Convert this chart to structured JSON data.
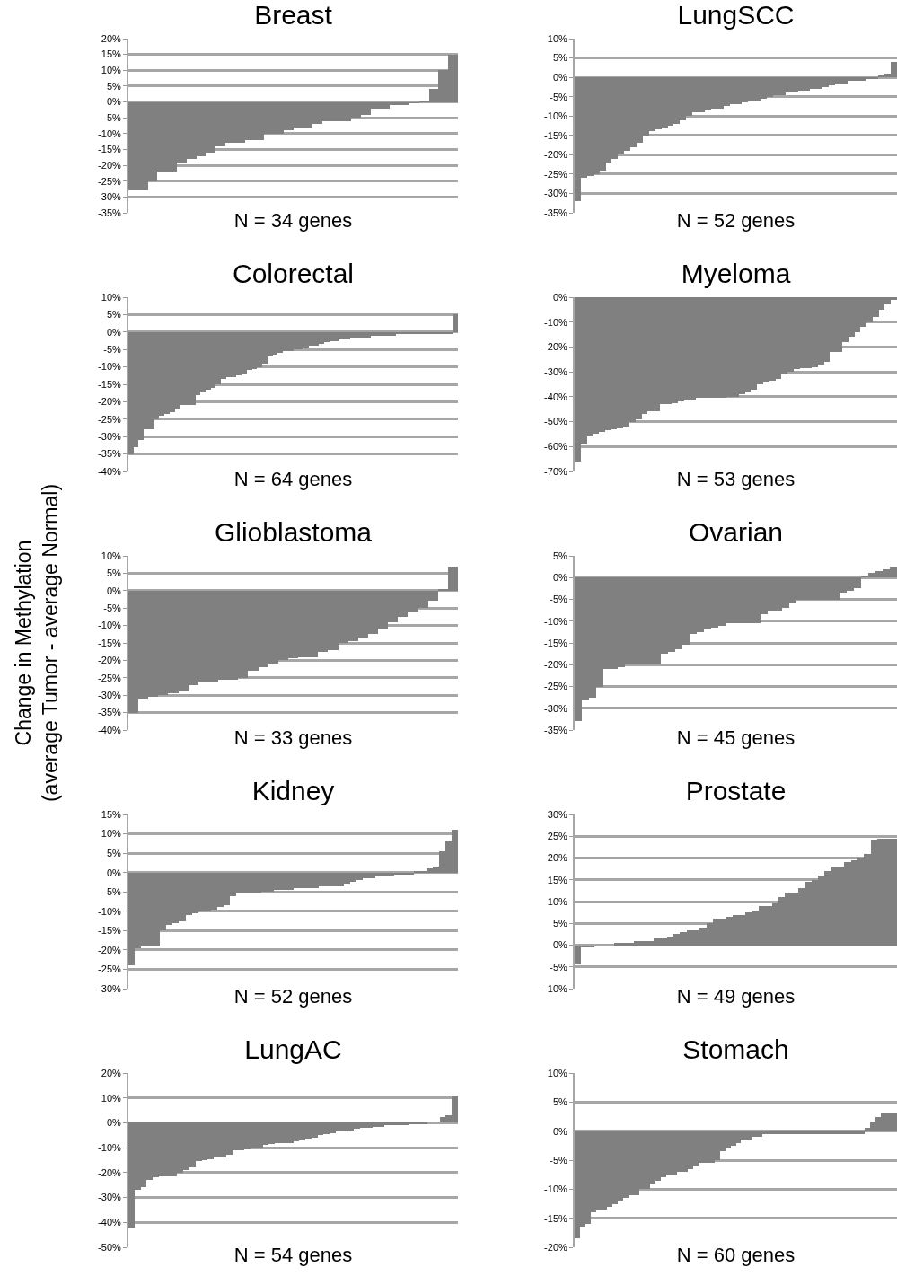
{
  "chart_data": [
    {
      "type": "bar",
      "title": "Breast",
      "xlabel": "N = 34 genes",
      "color": "#808080",
      "grid": "y",
      "tick_labels": "y",
      "categories": [
        null,
        null,
        null,
        null,
        null,
        null,
        null,
        null,
        null,
        null,
        null,
        null,
        null,
        null,
        null,
        null,
        null,
        null,
        null,
        null,
        null,
        null,
        null,
        null,
        null,
        null,
        null,
        null,
        null,
        null,
        null,
        null,
        null,
        null
      ],
      "values": [
        -28,
        -28,
        -25,
        -22,
        -22,
        -19,
        -18,
        -17,
        -16,
        -14,
        -13,
        -13,
        -12,
        -12,
        -10,
        -10,
        -9,
        -8,
        -8,
        -7,
        -6,
        -6,
        -6,
        -5,
        -4,
        -2,
        -2,
        -1,
        -1,
        -0.5,
        0.5,
        4,
        10,
        15
      ],
      "ylim": [
        -35,
        20
      ],
      "yticks": [
        {
          "value": -35,
          "label": "-35%"
        },
        {
          "value": -30,
          "label": "-30%"
        },
        {
          "value": -25,
          "label": "-25%"
        },
        {
          "value": -20,
          "label": "-20%"
        },
        {
          "value": -15,
          "label": "-15%"
        },
        {
          "value": -10,
          "label": "-10%"
        },
        {
          "value": -5,
          "label": "-5%"
        },
        {
          "value": 0,
          "label": "0%"
        },
        {
          "value": 5,
          "label": "5%"
        },
        {
          "value": 10,
          "label": "10%"
        },
        {
          "value": 15,
          "label": "15%"
        },
        {
          "value": 20,
          "label": "20%"
        }
      ]
    },
    {
      "type": "bar",
      "title": "LungSCC",
      "xlabel": "N = 52 genes",
      "color": "#808080",
      "grid": "y",
      "tick_labels": "y",
      "categories": [
        null,
        null,
        null,
        null,
        null,
        null,
        null,
        null,
        null,
        null,
        null,
        null,
        null,
        null,
        null,
        null,
        null,
        null,
        null,
        null,
        null,
        null,
        null,
        null,
        null,
        null,
        null,
        null,
        null,
        null,
        null,
        null,
        null,
        null,
        null,
        null,
        null,
        null,
        null,
        null,
        null,
        null,
        null,
        null,
        null,
        null,
        null,
        null,
        null,
        null,
        null,
        null
      ],
      "values": [
        -32,
        -26,
        -25.5,
        -25,
        -24,
        -22,
        -21,
        -20,
        -19,
        -18,
        -17,
        -15,
        -14,
        -13.5,
        -13,
        -12.5,
        -12,
        -11,
        -10,
        -9,
        -9,
        -8.5,
        -8,
        -8,
        -7.5,
        -7,
        -7,
        -6.5,
        -6,
        -6,
        -5.5,
        -5,
        -4.5,
        -4.5,
        -4,
        -4,
        -3.5,
        -3.5,
        -3,
        -3,
        -2.5,
        -2,
        -1.5,
        -1.5,
        -1,
        -1,
        -1,
        -0.5,
        -0.5,
        0.5,
        1,
        4
      ],
      "ylim": [
        -35,
        10
      ],
      "yticks": [
        {
          "value": -35,
          "label": "-35%"
        },
        {
          "value": -30,
          "label": "-30%"
        },
        {
          "value": -25,
          "label": "-25%"
        },
        {
          "value": -20,
          "label": "-20%"
        },
        {
          "value": -15,
          "label": "-15%"
        },
        {
          "value": -10,
          "label": "-10%"
        },
        {
          "value": -5,
          "label": "-5%"
        },
        {
          "value": 0,
          "label": "0%"
        },
        {
          "value": 5,
          "label": "5%"
        },
        {
          "value": 10,
          "label": "10%"
        }
      ]
    },
    {
      "type": "bar",
      "title": "Colorectal",
      "xlabel": "N = 64 genes",
      "color": "#808080",
      "grid": "y",
      "tick_labels": "y",
      "categories": [
        null,
        null,
        null,
        null,
        null,
        null,
        null,
        null,
        null,
        null,
        null,
        null,
        null,
        null,
        null,
        null,
        null,
        null,
        null,
        null,
        null,
        null,
        null,
        null,
        null,
        null,
        null,
        null,
        null,
        null,
        null,
        null,
        null,
        null,
        null,
        null,
        null,
        null,
        null,
        null,
        null,
        null,
        null,
        null,
        null,
        null,
        null,
        null,
        null,
        null,
        null,
        null,
        null,
        null,
        null,
        null,
        null,
        null,
        null,
        null,
        null,
        null,
        null,
        null
      ],
      "values": [
        -35,
        -33,
        -31,
        -28,
        -28,
        -25,
        -24,
        -23.5,
        -23,
        -22,
        -21,
        -21,
        -21,
        -18,
        -17,
        -16.5,
        -16,
        -15,
        -13.5,
        -13,
        -13,
        -12.5,
        -12,
        -11,
        -10.5,
        -10,
        -9,
        -7,
        -6.5,
        -6,
        -5.5,
        -5.5,
        -5,
        -5,
        -4.5,
        -4,
        -4,
        -3.5,
        -3,
        -2.5,
        -2.5,
        -2,
        -2,
        -1.5,
        -1.5,
        -1.5,
        -1.5,
        -1,
        -1,
        -1,
        -1,
        -1,
        -0.5,
        -0.5,
        -0.5,
        -0.5,
        -0.5,
        -0.5,
        -0.5,
        -0.5,
        -0.5,
        -0.5,
        -0.5,
        5
      ],
      "ylim": [
        -40,
        10
      ],
      "yticks": [
        {
          "value": -40,
          "label": "-40%"
        },
        {
          "value": -35,
          "label": "-35%"
        },
        {
          "value": -30,
          "label": "-30%"
        },
        {
          "value": -25,
          "label": "-25%"
        },
        {
          "value": -20,
          "label": "-20%"
        },
        {
          "value": -15,
          "label": "-15%"
        },
        {
          "value": -10,
          "label": "-10%"
        },
        {
          "value": -5,
          "label": "-5%"
        },
        {
          "value": 0,
          "label": "0%"
        },
        {
          "value": 5,
          "label": "5%"
        },
        {
          "value": 10,
          "label": "10%"
        }
      ]
    },
    {
      "type": "bar",
      "title": "Myeloma",
      "xlabel": "N = 53 genes",
      "color": "#808080",
      "grid": "y",
      "tick_labels": "y",
      "categories": [
        null,
        null,
        null,
        null,
        null,
        null,
        null,
        null,
        null,
        null,
        null,
        null,
        null,
        null,
        null,
        null,
        null,
        null,
        null,
        null,
        null,
        null,
        null,
        null,
        null,
        null,
        null,
        null,
        null,
        null,
        null,
        null,
        null,
        null,
        null,
        null,
        null,
        null,
        null,
        null,
        null,
        null,
        null,
        null,
        null,
        null,
        null,
        null,
        null,
        null,
        null,
        null,
        null
      ],
      "values": [
        -66,
        -59,
        -56,
        -55,
        -54,
        -53.5,
        -53,
        -52.5,
        -52,
        -50,
        -49,
        -47,
        -46,
        -46,
        -43,
        -43,
        -42.5,
        -42,
        -41.5,
        -41,
        -40.5,
        -40.5,
        -40.5,
        -40.5,
        -40.5,
        -40,
        -40,
        -39,
        -38,
        -37,
        -35,
        -34,
        -33.5,
        -33,
        -31,
        -30,
        -29,
        -28.5,
        -28.5,
        -28,
        -27,
        -26,
        -22,
        -22,
        -18,
        -16,
        -14,
        -12,
        -10,
        -8,
        -5,
        -3,
        -1
      ],
      "ylim": [
        -70,
        0
      ],
      "yticks": [
        {
          "value": -70,
          "label": "-70%"
        },
        {
          "value": -60,
          "label": "-60%"
        },
        {
          "value": -50,
          "label": "-50%"
        },
        {
          "value": -40,
          "label": "-40%"
        },
        {
          "value": -30,
          "label": "-30%"
        },
        {
          "value": -20,
          "label": "-20%"
        },
        {
          "value": -10,
          "label": "-10%"
        },
        {
          "value": 0,
          "label": "0%"
        }
      ]
    },
    {
      "type": "bar",
      "title": "Glioblastoma",
      "xlabel": "N = 33 genes",
      "ylabel": "Change in Methylation\n(average Tumor - average Normal)",
      "color": "#808080",
      "grid": "y",
      "tick_labels": "y",
      "categories": [
        null,
        null,
        null,
        null,
        null,
        null,
        null,
        null,
        null,
        null,
        null,
        null,
        null,
        null,
        null,
        null,
        null,
        null,
        null,
        null,
        null,
        null,
        null,
        null,
        null,
        null,
        null,
        null,
        null,
        null,
        null,
        null,
        null
      ],
      "values": [
        -35,
        -31,
        -30.5,
        -30,
        -29.5,
        -29,
        -27,
        -26,
        -26,
        -25.5,
        -25.5,
        -25,
        -23,
        -22,
        -21,
        -20,
        -19.5,
        -19,
        -19,
        -17.5,
        -17,
        -15,
        -14.5,
        -13.5,
        -12.5,
        -11,
        -9,
        -7.5,
        -6,
        -5,
        -3,
        0.5,
        7
      ],
      "ylim": [
        -40,
        10
      ],
      "yticks": [
        {
          "value": -40,
          "label": "-40%"
        },
        {
          "value": -35,
          "label": "-35%"
        },
        {
          "value": -30,
          "label": "-30%"
        },
        {
          "value": -25,
          "label": "-25%"
        },
        {
          "value": -20,
          "label": "-20%"
        },
        {
          "value": -15,
          "label": "-15%"
        },
        {
          "value": -10,
          "label": "-10%"
        },
        {
          "value": -5,
          "label": "-5%"
        },
        {
          "value": 0,
          "label": "0%"
        },
        {
          "value": 5,
          "label": "5%"
        },
        {
          "value": 10,
          "label": "10%"
        }
      ]
    },
    {
      "type": "bar",
      "title": "Ovarian",
      "xlabel": "N = 45 genes",
      "color": "#808080",
      "grid": "y",
      "tick_labels": "y",
      "categories": [
        null,
        null,
        null,
        null,
        null,
        null,
        null,
        null,
        null,
        null,
        null,
        null,
        null,
        null,
        null,
        null,
        null,
        null,
        null,
        null,
        null,
        null,
        null,
        null,
        null,
        null,
        null,
        null,
        null,
        null,
        null,
        null,
        null,
        null,
        null,
        null,
        null,
        null,
        null,
        null,
        null,
        null,
        null,
        null,
        null
      ],
      "values": [
        -33,
        -28,
        -27.5,
        -25,
        -21,
        -21,
        -20.5,
        -20,
        -20,
        -20,
        -20,
        -20,
        -17.5,
        -17,
        -16.5,
        -15.5,
        -13,
        -12.5,
        -12,
        -11.5,
        -11,
        -10.5,
        -10.5,
        -10.5,
        -10.5,
        -10.5,
        -8.5,
        -7.5,
        -7.5,
        -7,
        -6,
        -5,
        -5,
        -5,
        -5,
        -5,
        -5,
        -3.5,
        -3,
        -2.5,
        0.5,
        1,
        1.5,
        2,
        2.5
      ],
      "ylim": [
        -35,
        5
      ],
      "yticks": [
        {
          "value": -35,
          "label": "-35%"
        },
        {
          "value": -30,
          "label": "-30%"
        },
        {
          "value": -25,
          "label": "-25%"
        },
        {
          "value": -20,
          "label": "-20%"
        },
        {
          "value": -15,
          "label": "-15%"
        },
        {
          "value": -10,
          "label": "-10%"
        },
        {
          "value": -5,
          "label": "-5%"
        },
        {
          "value": 0,
          "label": "0%"
        },
        {
          "value": 5,
          "label": "5%"
        }
      ]
    },
    {
      "type": "bar",
      "title": "Kidney",
      "xlabel": "N = 52 genes",
      "color": "#808080",
      "grid": "y",
      "tick_labels": "y",
      "categories": [
        null,
        null,
        null,
        null,
        null,
        null,
        null,
        null,
        null,
        null,
        null,
        null,
        null,
        null,
        null,
        null,
        null,
        null,
        null,
        null,
        null,
        null,
        null,
        null,
        null,
        null,
        null,
        null,
        null,
        null,
        null,
        null,
        null,
        null,
        null,
        null,
        null,
        null,
        null,
        null,
        null,
        null,
        null,
        null,
        null,
        null,
        null,
        null,
        null,
        null,
        null,
        null
      ],
      "values": [
        -24,
        -19.5,
        -19,
        -19,
        -19,
        -15,
        -13.5,
        -13,
        -12.5,
        -11,
        -10.5,
        -10,
        -10,
        -9.5,
        -9,
        -8.5,
        -6,
        -5.5,
        -5.5,
        -5.5,
        -5.5,
        -5,
        -5,
        -4.5,
        -4.5,
        -4.5,
        -4,
        -4,
        -4,
        -4,
        -3.5,
        -3.5,
        -3.5,
        -3.5,
        -3,
        -2.5,
        -2,
        -1.5,
        -1.5,
        -1,
        -1,
        -1,
        -0.5,
        -0.5,
        -0.5,
        0.5,
        0.5,
        1,
        1.5,
        5.5,
        8,
        11
      ],
      "ylim": [
        -30,
        15
      ],
      "yticks": [
        {
          "value": -30,
          "label": "-30%"
        },
        {
          "value": -25,
          "label": "-25%"
        },
        {
          "value": -20,
          "label": "-20%"
        },
        {
          "value": -15,
          "label": "-15%"
        },
        {
          "value": -10,
          "label": "-10%"
        },
        {
          "value": -5,
          "label": "-5%"
        },
        {
          "value": 0,
          "label": "0%"
        },
        {
          "value": 5,
          "label": "5%"
        },
        {
          "value": 10,
          "label": "10%"
        },
        {
          "value": 15,
          "label": "15%"
        }
      ]
    },
    {
      "type": "bar",
      "title": "Prostate",
      "xlabel": "N = 49 genes",
      "color": "#808080",
      "grid": "y",
      "tick_labels": "y",
      "categories": [
        null,
        null,
        null,
        null,
        null,
        null,
        null,
        null,
        null,
        null,
        null,
        null,
        null,
        null,
        null,
        null,
        null,
        null,
        null,
        null,
        null,
        null,
        null,
        null,
        null,
        null,
        null,
        null,
        null,
        null,
        null,
        null,
        null,
        null,
        null,
        null,
        null,
        null,
        null,
        null,
        null,
        null,
        null,
        null,
        null,
        null,
        null,
        null,
        null
      ],
      "values": [
        -4.5,
        -0.5,
        -0.5,
        0,
        0,
        0,
        0.5,
        0.5,
        0.5,
        1,
        1,
        1,
        1.5,
        1.5,
        2,
        2.5,
        3,
        3.5,
        3.5,
        4,
        5,
        6,
        6,
        6.5,
        7,
        7,
        7.5,
        8,
        9,
        9,
        9.5,
        11,
        12,
        12,
        13,
        14.5,
        15,
        16,
        17,
        18,
        18,
        19,
        19.5,
        20,
        21,
        24,
        24.5,
        24.5,
        24.5
      ],
      "ylim": [
        -10,
        30
      ],
      "yticks": [
        {
          "value": -10,
          "label": "-10%"
        },
        {
          "value": -5,
          "label": "-5%"
        },
        {
          "value": 0,
          "label": "0%"
        },
        {
          "value": 5,
          "label": "5%"
        },
        {
          "value": 10,
          "label": "10%"
        },
        {
          "value": 15,
          "label": "15%"
        },
        {
          "value": 20,
          "label": "20%"
        },
        {
          "value": 25,
          "label": "25%"
        },
        {
          "value": 30,
          "label": "30%"
        }
      ]
    },
    {
      "type": "bar",
      "title": "LungAC",
      "xlabel": "N = 54 genes",
      "color": "#808080",
      "grid": "y",
      "tick_labels": "y",
      "categories": [
        null,
        null,
        null,
        null,
        null,
        null,
        null,
        null,
        null,
        null,
        null,
        null,
        null,
        null,
        null,
        null,
        null,
        null,
        null,
        null,
        null,
        null,
        null,
        null,
        null,
        null,
        null,
        null,
        null,
        null,
        null,
        null,
        null,
        null,
        null,
        null,
        null,
        null,
        null,
        null,
        null,
        null,
        null,
        null,
        null,
        null,
        null,
        null,
        null,
        null,
        null,
        null,
        null,
        null
      ],
      "values": [
        -42,
        -27,
        -26,
        -23,
        -22,
        -21.5,
        -21.5,
        -21.5,
        -20,
        -19,
        -18,
        -15.5,
        -15,
        -14.5,
        -14,
        -14,
        -13,
        -11,
        -11,
        -10.5,
        -10,
        -10,
        -9,
        -8.5,
        -8,
        -8,
        -8,
        -7.5,
        -7,
        -6.5,
        -6,
        -5,
        -4.5,
        -4,
        -3.5,
        -3.5,
        -3,
        -2.5,
        -2,
        -2,
        -1.5,
        -1.5,
        -1,
        -1,
        -1,
        -1,
        -0.5,
        -0.5,
        -0.5,
        0.5,
        0.5,
        2.5,
        3,
        11
      ],
      "ylim": [
        -50,
        20
      ],
      "yticks": [
        {
          "value": -50,
          "label": "-50%"
        },
        {
          "value": -40,
          "label": "-40%"
        },
        {
          "value": -30,
          "label": "-30%"
        },
        {
          "value": -20,
          "label": "-20%"
        },
        {
          "value": -10,
          "label": "-10%"
        },
        {
          "value": 0,
          "label": "0%"
        },
        {
          "value": 10,
          "label": "10%"
        },
        {
          "value": 20,
          "label": "20%"
        }
      ]
    },
    {
      "type": "bar",
      "title": "Stomach",
      "xlabel": "N = 60 genes",
      "color": "#808080",
      "grid": "y",
      "tick_labels": "y",
      "categories": [
        null,
        null,
        null,
        null,
        null,
        null,
        null,
        null,
        null,
        null,
        null,
        null,
        null,
        null,
        null,
        null,
        null,
        null,
        null,
        null,
        null,
        null,
        null,
        null,
        null,
        null,
        null,
        null,
        null,
        null,
        null,
        null,
        null,
        null,
        null,
        null,
        null,
        null,
        null,
        null,
        null,
        null,
        null,
        null,
        null,
        null,
        null,
        null,
        null,
        null,
        null,
        null,
        null,
        null,
        null,
        null,
        null,
        null,
        null,
        null
      ],
      "values": [
        -18.5,
        -16.5,
        -16,
        -14,
        -13.5,
        -13.5,
        -13,
        -12.5,
        -12,
        -11.5,
        -11,
        -11,
        -10,
        -10,
        -9,
        -8.5,
        -8,
        -7.5,
        -7.5,
        -7,
        -7,
        -6.5,
        -6,
        -5.5,
        -5.5,
        -5.5,
        -5,
        -3.5,
        -3,
        -2.5,
        -2,
        -1.5,
        -1.5,
        -1,
        -1,
        -0.5,
        -0.5,
        -0.5,
        -0.5,
        -0.5,
        -0.5,
        -0.5,
        -0.5,
        -0.5,
        -0.5,
        -0.5,
        -0.5,
        -0.5,
        -0.5,
        -0.5,
        -0.5,
        -0.5,
        -0.5,
        -0.5,
        0.5,
        1.5,
        2.5,
        3,
        3,
        3
      ],
      "ylim": [
        -20,
        10
      ],
      "yticks": [
        {
          "value": -20,
          "label": "-20%"
        },
        {
          "value": -15,
          "label": "-15%"
        },
        {
          "value": -10,
          "label": "-10%"
        },
        {
          "value": -5,
          "label": "-5%"
        },
        {
          "value": 0,
          "label": "0%"
        },
        {
          "value": 5,
          "label": "5%"
        },
        {
          "value": 10,
          "label": "10%"
        }
      ]
    }
  ]
}
